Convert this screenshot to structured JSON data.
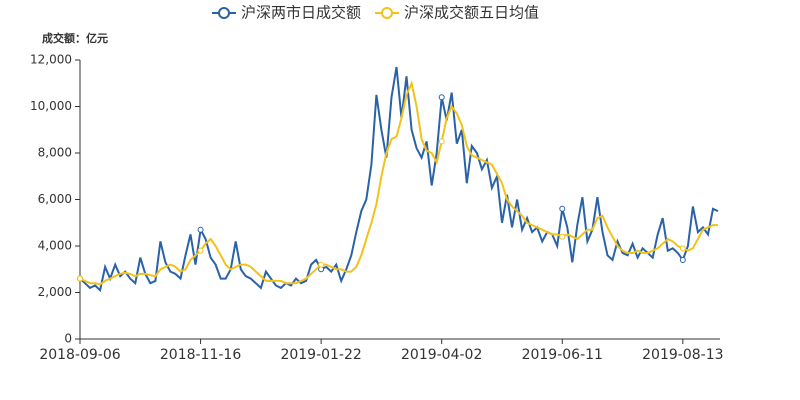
{
  "chart_data": {
    "type": "line",
    "y_axis_label": "成交额：亿元",
    "categories": [
      "2018-09-06",
      null,
      null,
      null,
      null,
      null,
      null,
      null,
      null,
      null,
      null,
      null,
      null,
      null,
      null,
      null,
      null,
      null,
      null,
      null,
      null,
      null,
      null,
      null,
      "2018-11-16",
      null,
      null,
      null,
      null,
      null,
      null,
      null,
      null,
      null,
      null,
      null,
      null,
      null,
      null,
      null,
      null,
      null,
      null,
      null,
      null,
      null,
      null,
      null,
      "2019-01-22",
      null,
      null,
      null,
      null,
      null,
      null,
      null,
      null,
      null,
      null,
      null,
      null,
      null,
      null,
      null,
      null,
      null,
      null,
      null,
      null,
      null,
      null,
      null,
      "2019-04-02",
      null,
      null,
      null,
      null,
      null,
      null,
      null,
      null,
      null,
      null,
      null,
      null,
      null,
      null,
      null,
      null,
      null,
      null,
      null,
      null,
      null,
      null,
      null,
      "2019-06-11",
      null,
      null,
      null,
      null,
      null,
      null,
      null,
      null,
      null,
      null,
      null,
      null,
      null,
      null,
      null,
      null,
      null,
      null,
      null,
      null,
      null,
      null,
      null,
      "2019-08-13",
      null,
      null,
      null,
      null,
      null,
      null,
      null
    ],
    "series": [
      {
        "name": "沪深两市日成交额",
        "color": "#2a62a8",
        "values": [
          2600,
          2400,
          2200,
          2300,
          2100,
          3100,
          2600,
          3200,
          2700,
          2900,
          2600,
          2400,
          3500,
          2800,
          2400,
          2500,
          4200,
          3300,
          2900,
          2800,
          2600,
          3600,
          4500,
          3200,
          4700,
          4300,
          3500,
          3200,
          2600,
          2600,
          3000,
          4200,
          3000,
          2700,
          2600,
          2400,
          2200,
          2900,
          2600,
          2300,
          2200,
          2400,
          2300,
          2600,
          2400,
          2500,
          3200,
          3400,
          3000,
          3100,
          2900,
          3200,
          2500,
          3000,
          3600,
          4600,
          5500,
          6000,
          7500,
          10500,
          9000,
          7800,
          10400,
          11700,
          9500,
          11300,
          9000,
          8200,
          7800,
          8500,
          6600,
          8000,
          10400,
          9400,
          10600,
          8400,
          9000,
          6700,
          8300,
          8000,
          7300,
          7700,
          6500,
          7000,
          5000,
          6200,
          4800,
          6000,
          4700,
          5200,
          4600,
          4800,
          4200,
          4600,
          4500,
          4000,
          5600,
          4800,
          3300,
          4900,
          6100,
          4200,
          4700,
          6100,
          4600,
          3600,
          3400,
          4200,
          3700,
          3600,
          4100,
          3500,
          3900,
          3700,
          3500,
          4500,
          5200,
          3800,
          3900,
          3700,
          3400,
          4000,
          5700,
          4600,
          4800,
          4500,
          5600,
          5500
        ]
      },
      {
        "name": "沪深成交额五日均值",
        "color": "#f3c218",
        "values": [
          2600,
          2500,
          2400,
          2400,
          2350,
          2500,
          2600,
          2700,
          2800,
          2850,
          2800,
          2700,
          2800,
          2800,
          2750,
          2700,
          3000,
          3100,
          3200,
          3100,
          2900,
          3000,
          3400,
          3600,
          3800,
          4100,
          4300,
          4000,
          3600,
          3200,
          3000,
          3100,
          3200,
          3200,
          3100,
          2900,
          2700,
          2500,
          2500,
          2500,
          2500,
          2400,
          2400,
          2400,
          2500,
          2600,
          2800,
          3000,
          3200,
          3200,
          3100,
          3000,
          3000,
          2900,
          2900,
          3100,
          3600,
          4300,
          5000,
          5800,
          7000,
          8000,
          8600,
          8700,
          9500,
          10500,
          11000,
          10000,
          8600,
          8100,
          8000,
          7600,
          8500,
          9500,
          10000,
          9700,
          9200,
          8300,
          7900,
          7800,
          7700,
          7600,
          7500,
          7100,
          6700,
          6000,
          5700,
          5500,
          5300,
          5000,
          4900,
          4800,
          4700,
          4600,
          4500,
          4500,
          4400,
          4500,
          4400,
          4300,
          4500,
          4700,
          4700,
          5200,
          5300,
          4800,
          4400,
          4000,
          3800,
          3700,
          3700,
          3800,
          3700,
          3700,
          3800,
          3900,
          4100,
          4300,
          4200,
          4000,
          3900,
          3800,
          3900,
          4300,
          4700,
          4800,
          4900,
          4900
        ]
      }
    ],
    "ylim": [
      0,
      12000
    ],
    "yticks": [
      0,
      {
        "value": 2000,
        "label": "2,000"
      },
      {
        "value": 4000,
        "label": "4,000"
      },
      {
        "value": 6000,
        "label": "6,000"
      },
      {
        "value": 8000,
        "label": "8,000"
      },
      {
        "value": 10000,
        "label": "10,000"
      },
      {
        "value": 12000,
        "label": "12,000"
      }
    ]
  }
}
